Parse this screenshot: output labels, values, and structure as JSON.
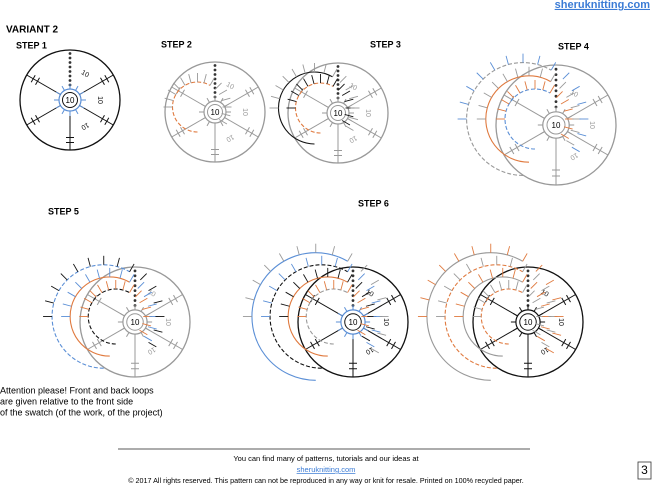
{
  "header": {
    "site": "sheruknitting.com",
    "variant": "VARIANT 2"
  },
  "steps": [
    "STEP 1",
    "STEP 2",
    "STEP 3",
    "STEP 4",
    "STEP 5",
    "STEP 6"
  ],
  "diagram_label": "10",
  "note": [
    "Attention please! Front and back loops",
    "are given relative to the front side",
    "of the swatch (of the work, of the project)"
  ],
  "footer": {
    "line1": "You can find many of patterns, tutorials and our ideas at",
    "link": "sheruknitting.com",
    "copyright": "© 2017 All rights reserved. This pattern can not be reproduced in any way or knit for resale. Printed on 100% recycled paper."
  },
  "page_number": "3"
}
